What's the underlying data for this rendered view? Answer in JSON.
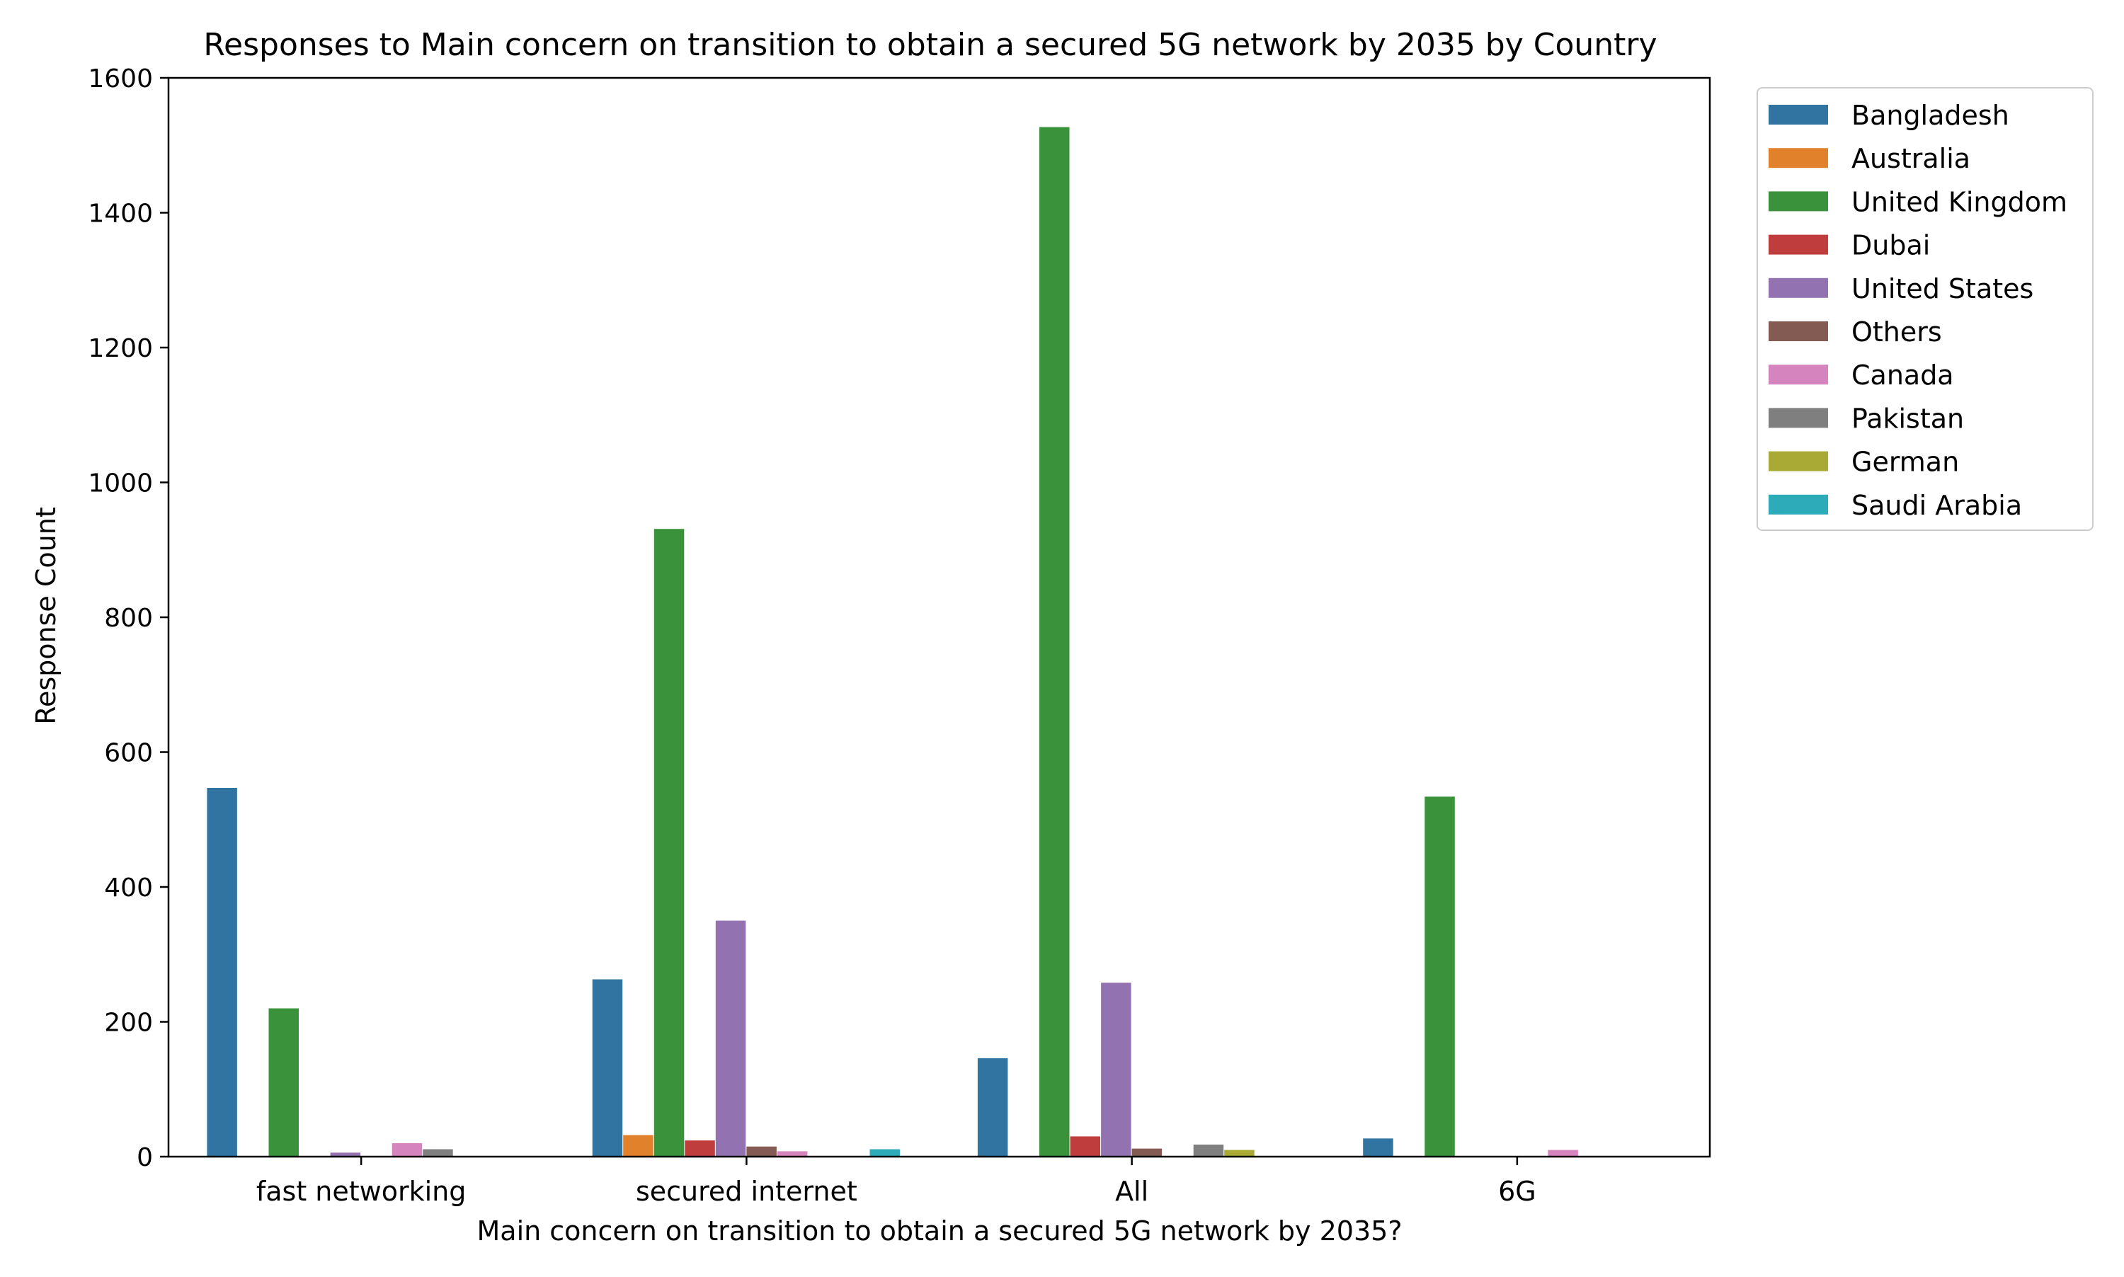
{
  "chart_data": {
    "type": "bar",
    "title": "Responses to Main concern on transition to obtain a secured 5G network by 2035 by Country",
    "xlabel": "Main concern on transition to obtain a secured 5G network by 2035?",
    "ylabel": "Response Count",
    "ylim": [
      0,
      1600
    ],
    "yticks": [
      0,
      200,
      400,
      600,
      800,
      1000,
      1200,
      1400,
      1600
    ],
    "grid": false,
    "legend_position": "outside-top-right",
    "categories": [
      "fast networking",
      "secured internet",
      "All",
      "6G"
    ],
    "series": [
      {
        "name": "Bangladesh",
        "color": "#3274a1",
        "values": [
          547,
          263,
          146,
          27
        ]
      },
      {
        "name": "Australia",
        "color": "#e1812c",
        "values": [
          0,
          32,
          0,
          0
        ]
      },
      {
        "name": "United Kingdom",
        "color": "#3a923a",
        "values": [
          220,
          931,
          1527,
          534
        ]
      },
      {
        "name": "Dubai",
        "color": "#c03d3e",
        "values": [
          0,
          24,
          30,
          0
        ]
      },
      {
        "name": "United States",
        "color": "#9372b2",
        "values": [
          6,
          350,
          258,
          0
        ]
      },
      {
        "name": "Others",
        "color": "#845b53",
        "values": [
          0,
          15,
          12,
          0
        ]
      },
      {
        "name": "Canada",
        "color": "#d684bd",
        "values": [
          20,
          8,
          0,
          10
        ]
      },
      {
        "name": "Pakistan",
        "color": "#7f7f7f",
        "values": [
          11,
          0,
          18,
          0
        ]
      },
      {
        "name": "German",
        "color": "#a9aa35",
        "values": [
          0,
          0,
          10,
          0
        ]
      },
      {
        "name": "Saudi Arabia",
        "color": "#2eabb8",
        "values": [
          0,
          11,
          0,
          0
        ]
      }
    ]
  }
}
